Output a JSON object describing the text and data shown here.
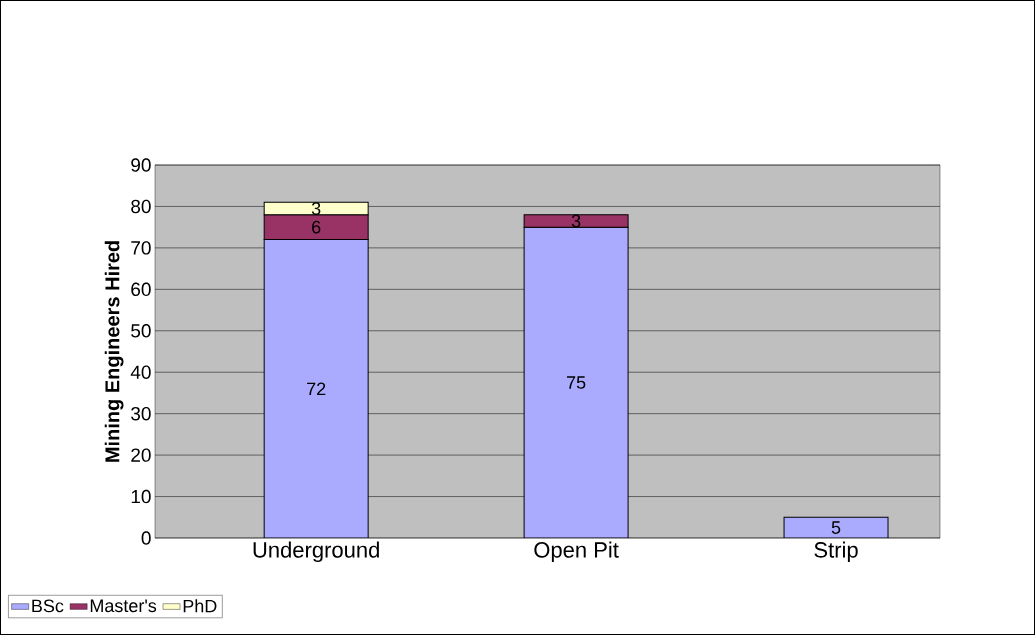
{
  "chart_data": {
    "type": "bar",
    "stacked": true,
    "ylabel": "Mining Engineers Hired",
    "categories": [
      "Underground",
      "Open Pit",
      "Strip"
    ],
    "series": [
      {
        "name": "BSc",
        "color": "#aaaaff",
        "values": [
          72,
          75,
          5
        ]
      },
      {
        "name": "Master's",
        "color": "#993366",
        "values": [
          6,
          3,
          null
        ]
      },
      {
        "name": "PhD",
        "color": "#ffffcc",
        "values": [
          3,
          null,
          null
        ]
      }
    ],
    "ylim": [
      0,
      90
    ],
    "yticks": [
      0,
      10,
      20,
      30,
      40,
      50,
      60,
      70,
      80,
      90
    ],
    "grid": "y",
    "legend": "bottom left",
    "data_labels": true
  }
}
